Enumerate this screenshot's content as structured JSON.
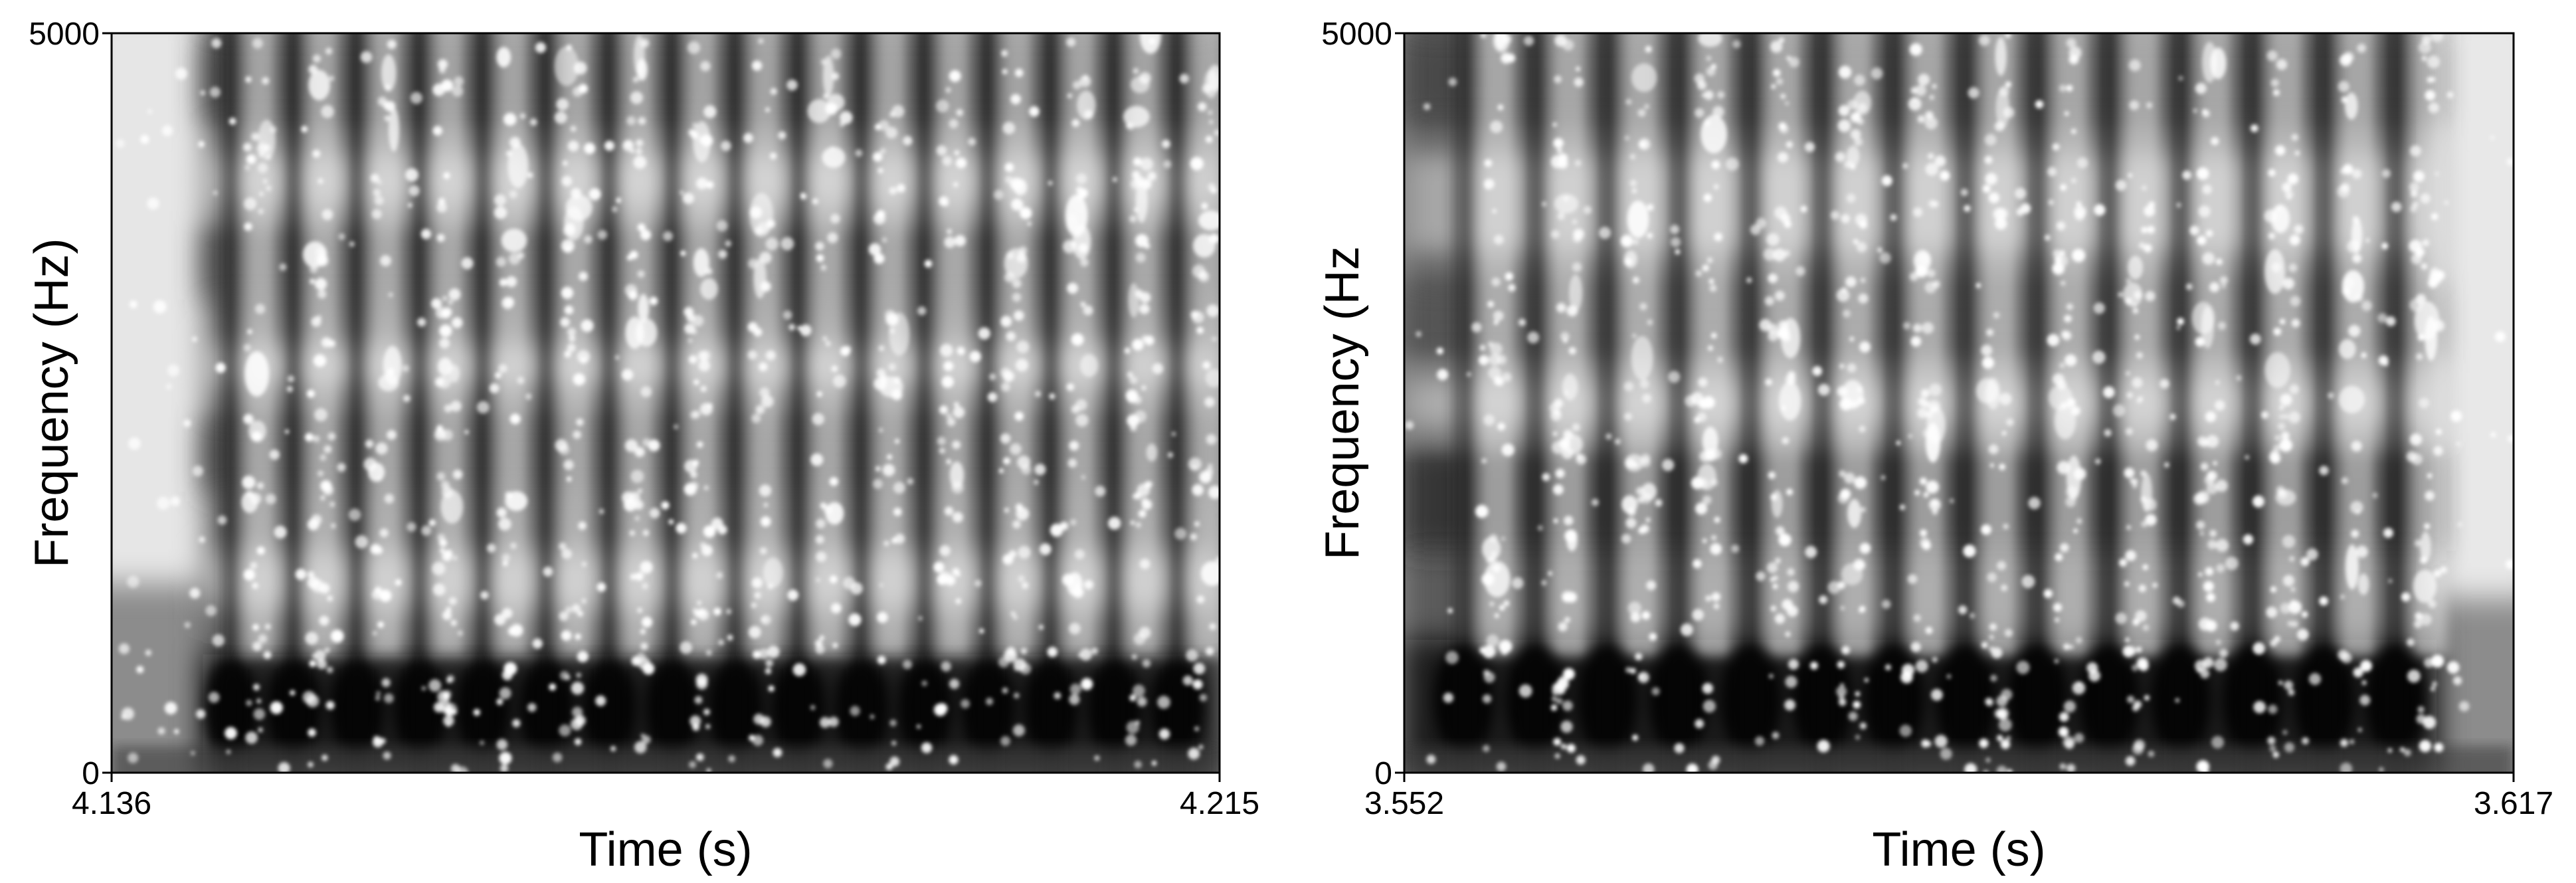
{
  "chart_data": [
    {
      "type": "heatmap",
      "description_kind": "spectrogram",
      "colormap": "grayscale (dark = high intensity)",
      "xlabel": "Time (s)",
      "ylabel": "Frequency (Hz)",
      "xlim": [
        4.136,
        4.215
      ],
      "ylim": [
        0,
        5000
      ],
      "x_tick_labels": [
        "4.136",
        "4.215"
      ],
      "y_tick_labels": [
        "5000",
        "0"
      ],
      "grid": false,
      "legend": "none",
      "dark_onset": 4.1425,
      "dark_offset": 4.215,
      "pulse_count": 16,
      "pulse_times": [
        4.1445,
        4.149,
        4.1535,
        4.158,
        4.1625,
        4.167,
        4.1715,
        4.176,
        4.1805,
        4.185,
        4.1895,
        4.194,
        4.1985,
        4.203,
        4.2075,
        4.212
      ],
      "dark_bands_hz": [
        {
          "low": 0,
          "high": 800,
          "level": 0.95
        },
        {
          "low": 1900,
          "high": 2400,
          "level": 0.55
        },
        {
          "low": 3200,
          "high": 3700,
          "level": 0.5
        },
        {
          "low": 4400,
          "high": 5000,
          "level": 0.6
        }
      ],
      "light_bands_hz": [
        {
          "low": 1100,
          "high": 1500,
          "level": 0.25
        },
        {
          "low": 2600,
          "high": 2900,
          "level": 0.3
        },
        {
          "low": 3800,
          "high": 4200,
          "level": 0.35
        }
      ]
    },
    {
      "type": "heatmap",
      "description_kind": "spectrogram",
      "colormap": "grayscale (dark = high intensity)",
      "xlabel": "Time (s)",
      "ylabel": "Frequency (Hz",
      "xlim": [
        3.552,
        3.617
      ],
      "ylim": [
        0,
        5000
      ],
      "x_tick_labels": [
        "3.552",
        "3.617"
      ],
      "y_tick_labels": [
        "5000",
        "0"
      ],
      "grid": false,
      "legend": "none",
      "dark_onset": 3.552,
      "dark_offset": 3.6125,
      "pulse_count": 14,
      "pulse_times": [
        3.5555,
        3.5597,
        3.5639,
        3.5681,
        3.5723,
        3.5765,
        3.5807,
        3.5849,
        3.5891,
        3.5933,
        3.5975,
        3.6017,
        3.6059,
        3.6101
      ],
      "dark_bands_hz": [
        {
          "low": 0,
          "high": 900,
          "level": 0.95
        },
        {
          "low": 1500,
          "high": 2200,
          "level": 0.7
        },
        {
          "low": 2800,
          "high": 3300,
          "level": 0.45
        },
        {
          "low": 4400,
          "high": 5000,
          "level": 0.55
        }
      ],
      "light_bands_hz": [
        {
          "low": 2300,
          "high": 2700,
          "level": 0.3
        },
        {
          "low": 3500,
          "high": 4200,
          "level": 0.25
        }
      ]
    }
  ]
}
